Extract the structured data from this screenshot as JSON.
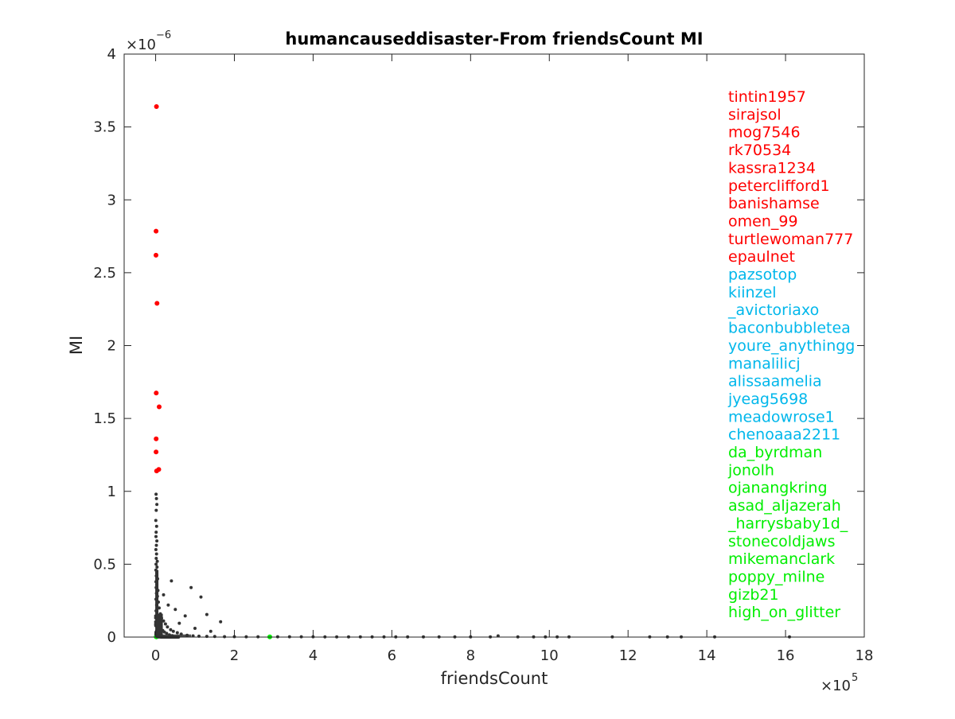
{
  "chart_data": {
    "type": "scatter",
    "title": "humancauseddisaster-From friendsCount MI",
    "xlabel": "friendsCount",
    "ylabel": "MI",
    "x_exponent_label": "×10",
    "x_exponent_power": "5",
    "y_exponent_label": "×10",
    "y_exponent_power": "−6",
    "xlim": [
      -80000,
      1800000
    ],
    "ylim": [
      0,
      4e-06
    ],
    "x_ticks": [
      0,
      200000,
      400000,
      600000,
      800000,
      1000000,
      1200000,
      1400000,
      1600000,
      1800000
    ],
    "x_tick_labels": [
      "0",
      "2",
      "4",
      "6",
      "8",
      "10",
      "12",
      "14",
      "16",
      "18"
    ],
    "y_ticks": [
      0,
      5e-07,
      1e-06,
      1.5e-06,
      2e-06,
      2.5e-06,
      3e-06,
      3.5e-06,
      4e-06
    ],
    "y_tick_labels": [
      "0",
      "0.5",
      "1",
      "1.5",
      "2",
      "2.5",
      "3",
      "3.5",
      "4"
    ],
    "grid": false,
    "colors": {
      "top": "#ff0000",
      "middle": "#00b7eb",
      "bottom": "#00ee00",
      "other": "#333333"
    },
    "series": [
      {
        "name": "top",
        "color": "#ff0000",
        "points": [
          {
            "x": 2000,
            "y": 3.64e-06
          },
          {
            "x": 1000,
            "y": 2.785e-06
          },
          {
            "x": 800,
            "y": 2.62e-06
          },
          {
            "x": 3500,
            "y": 2.29e-06
          },
          {
            "x": 1500,
            "y": 1.675e-06
          },
          {
            "x": 9000,
            "y": 1.58e-06
          },
          {
            "x": 1200,
            "y": 1.36e-06
          },
          {
            "x": 1000,
            "y": 1.27e-06
          },
          {
            "x": 8000,
            "y": 1.15e-06
          },
          {
            "x": 2500,
            "y": 1.14e-06
          }
        ]
      },
      {
        "name": "middle",
        "color": "#00b7eb",
        "points": []
      },
      {
        "name": "bottom",
        "color": "#00ee00",
        "points": [
          {
            "x": 1500,
            "y": 2e-09
          },
          {
            "x": 2000,
            "y": 1e-09
          },
          {
            "x": 290000,
            "y": 1e-09
          }
        ]
      },
      {
        "name": "other",
        "color": "#333333",
        "points": [
          {
            "x": 1000,
            "y": 9.8e-07
          },
          {
            "x": 2000,
            "y": 9.5e-07
          },
          {
            "x": 3000,
            "y": 9.1e-07
          },
          {
            "x": 1500,
            "y": 8.7e-07
          },
          {
            "x": 500,
            "y": 8e-07
          },
          {
            "x": 2500,
            "y": 7.6e-07
          },
          {
            "x": 1200,
            "y": 7.2e-07
          },
          {
            "x": 800,
            "y": 6.9e-07
          },
          {
            "x": 3000,
            "y": 6.6e-07
          },
          {
            "x": 1800,
            "y": 6.3e-07
          },
          {
            "x": 600,
            "y": 6e-07
          },
          {
            "x": 2200,
            "y": 5.7e-07
          },
          {
            "x": 1400,
            "y": 5.4e-07
          },
          {
            "x": 4000,
            "y": 5.2e-07
          },
          {
            "x": 1000,
            "y": 5e-07
          },
          {
            "x": 3500,
            "y": 4.8e-07
          },
          {
            "x": 700,
            "y": 4.6e-07
          },
          {
            "x": 2600,
            "y": 4.4e-07
          },
          {
            "x": 1600,
            "y": 4.2e-07
          },
          {
            "x": 5000,
            "y": 4e-07
          },
          {
            "x": 900,
            "y": 3.8e-07
          },
          {
            "x": 3000,
            "y": 3.6e-07
          },
          {
            "x": 1300,
            "y": 3.4e-07
          },
          {
            "x": 6000,
            "y": 3.2e-07
          },
          {
            "x": 2000,
            "y": 3e-07
          },
          {
            "x": 4500,
            "y": 2.8e-07
          },
          {
            "x": 800,
            "y": 2.6e-07
          },
          {
            "x": 7000,
            "y": 2.4e-07
          },
          {
            "x": 2400,
            "y": 2.2e-07
          },
          {
            "x": 9000,
            "y": 2e-07
          },
          {
            "x": 1000,
            "y": 1.8e-07
          },
          {
            "x": 12000,
            "y": 1.6e-07
          },
          {
            "x": 3000,
            "y": 1.5e-07
          },
          {
            "x": 15000,
            "y": 1.3e-07
          },
          {
            "x": 5000,
            "y": 1.2e-07
          },
          {
            "x": 20000,
            "y": 1.1e-07
          },
          {
            "x": 8000,
            "y": 1e-07
          },
          {
            "x": 25000,
            "y": 9e-08
          },
          {
            "x": 11000,
            "y": 8e-08
          },
          {
            "x": 30000,
            "y": 7e-08
          },
          {
            "x": 14000,
            "y": 6e-08
          },
          {
            "x": 38000,
            "y": 5e-08
          },
          {
            "x": 18000,
            "y": 4.5e-08
          },
          {
            "x": 45000,
            "y": 4e-08
          },
          {
            "x": 22000,
            "y": 3.5e-08
          },
          {
            "x": 55000,
            "y": 3e-08
          },
          {
            "x": 28000,
            "y": 2.5e-08
          },
          {
            "x": 65000,
            "y": 2e-08
          },
          {
            "x": 35000,
            "y": 1.5e-08
          },
          {
            "x": 80000,
            "y": 1.2e-08
          },
          {
            "x": 42000,
            "y": 1e-08
          },
          {
            "x": 95000,
            "y": 8e-09
          },
          {
            "x": 110000,
            "y": 6e-09
          },
          {
            "x": 130000,
            "y": 5e-09
          },
          {
            "x": 150000,
            "y": 4e-09
          },
          {
            "x": 175000,
            "y": 3e-09
          },
          {
            "x": 200000,
            "y": 3e-09
          },
          {
            "x": 230000,
            "y": 2e-09
          },
          {
            "x": 260000,
            "y": 2e-09
          },
          {
            "x": 310000,
            "y": 2e-09
          },
          {
            "x": 340000,
            "y": 2e-09
          },
          {
            "x": 370000,
            "y": 2e-09
          },
          {
            "x": 400000,
            "y": 2e-09
          },
          {
            "x": 430000,
            "y": 1e-09
          },
          {
            "x": 460000,
            "y": 1e-09
          },
          {
            "x": 490000,
            "y": 1e-09
          },
          {
            "x": 520000,
            "y": 1e-09
          },
          {
            "x": 550000,
            "y": 1e-09
          },
          {
            "x": 580000,
            "y": 1e-09
          },
          {
            "x": 610000,
            "y": 1e-09
          },
          {
            "x": 640000,
            "y": 1e-09
          },
          {
            "x": 680000,
            "y": 1e-09
          },
          {
            "x": 720000,
            "y": 1e-09
          },
          {
            "x": 760000,
            "y": 1e-09
          },
          {
            "x": 800000,
            "y": 1e-09
          },
          {
            "x": 850000,
            "y": 1e-09
          },
          {
            "x": 870000,
            "y": 8e-09
          },
          {
            "x": 920000,
            "y": 1e-09
          },
          {
            "x": 960000,
            "y": 1e-09
          },
          {
            "x": 990000,
            "y": 1e-09
          },
          {
            "x": 1020000,
            "y": 1e-09
          },
          {
            "x": 1050000,
            "y": 1e-09
          },
          {
            "x": 1160000,
            "y": 1e-09
          },
          {
            "x": 1255000,
            "y": 1e-09
          },
          {
            "x": 1300000,
            "y": 1e-09
          },
          {
            "x": 1335000,
            "y": 1e-09
          },
          {
            "x": 1420000,
            "y": 1e-09
          },
          {
            "x": 1610000,
            "y": 1e-09
          },
          {
            "x": 40000,
            "y": 3.85e-07
          },
          {
            "x": 90000,
            "y": 3.4e-07
          },
          {
            "x": 115000,
            "y": 2.75e-07
          },
          {
            "x": 75000,
            "y": 1.45e-07
          },
          {
            "x": 130000,
            "y": 1.55e-07
          },
          {
            "x": 165000,
            "y": 1.05e-07
          },
          {
            "x": 60000,
            "y": 9.5e-08
          },
          {
            "x": 100000,
            "y": 6e-08
          },
          {
            "x": 140000,
            "y": 4e-08
          },
          {
            "x": 32000,
            "y": 2.2e-07
          },
          {
            "x": 50000,
            "y": 1.9e-07
          },
          {
            "x": 20000,
            "y": 2.9e-07
          }
        ]
      }
    ],
    "name_labels": [
      {
        "text": "tintin1957",
        "color": "#ff0000"
      },
      {
        "text": "sirajsol",
        "color": "#ff0000"
      },
      {
        "text": "mog7546",
        "color": "#ff0000"
      },
      {
        "text": "rk70534",
        "color": "#ff0000"
      },
      {
        "text": "kassra1234",
        "color": "#ff0000"
      },
      {
        "text": "peterclifford1",
        "color": "#ff0000"
      },
      {
        "text": "banishamse",
        "color": "#ff0000"
      },
      {
        "text": "omen_99",
        "color": "#ff0000"
      },
      {
        "text": "turtlewoman777",
        "color": "#ff0000"
      },
      {
        "text": "epaulnet",
        "color": "#ff0000"
      },
      {
        "text": "pazsotop",
        "color": "#00b7eb"
      },
      {
        "text": "kiinzel",
        "color": "#00b7eb"
      },
      {
        "text": "_avictoriaxo",
        "color": "#00b7eb"
      },
      {
        "text": "baconbubbletea",
        "color": "#00b7eb"
      },
      {
        "text": "youre_anythingg",
        "color": "#00b7eb"
      },
      {
        "text": "manalilicj",
        "color": "#00b7eb"
      },
      {
        "text": "alissaamelia",
        "color": "#00b7eb"
      },
      {
        "text": "jyeag5698",
        "color": "#00b7eb"
      },
      {
        "text": "meadowrose1",
        "color": "#00b7eb"
      },
      {
        "text": "chenoaaa2211",
        "color": "#00b7eb"
      },
      {
        "text": "da_byrdman",
        "color": "#00ee00"
      },
      {
        "text": "jonolh",
        "color": "#00ee00"
      },
      {
        "text": "ojanangkring",
        "color": "#00ee00"
      },
      {
        "text": "asad_aljazerah",
        "color": "#00ee00"
      },
      {
        "text": "_harrysbaby1d_",
        "color": "#00ee00"
      },
      {
        "text": "stonecoldjaws",
        "color": "#00ee00"
      },
      {
        "text": "mikemanclark",
        "color": "#00ee00"
      },
      {
        "text": "poppy_milne",
        "color": "#00ee00"
      },
      {
        "text": "gizb21",
        "color": "#00ee00"
      },
      {
        "text": "high_on_glitter",
        "color": "#00ee00"
      }
    ]
  }
}
